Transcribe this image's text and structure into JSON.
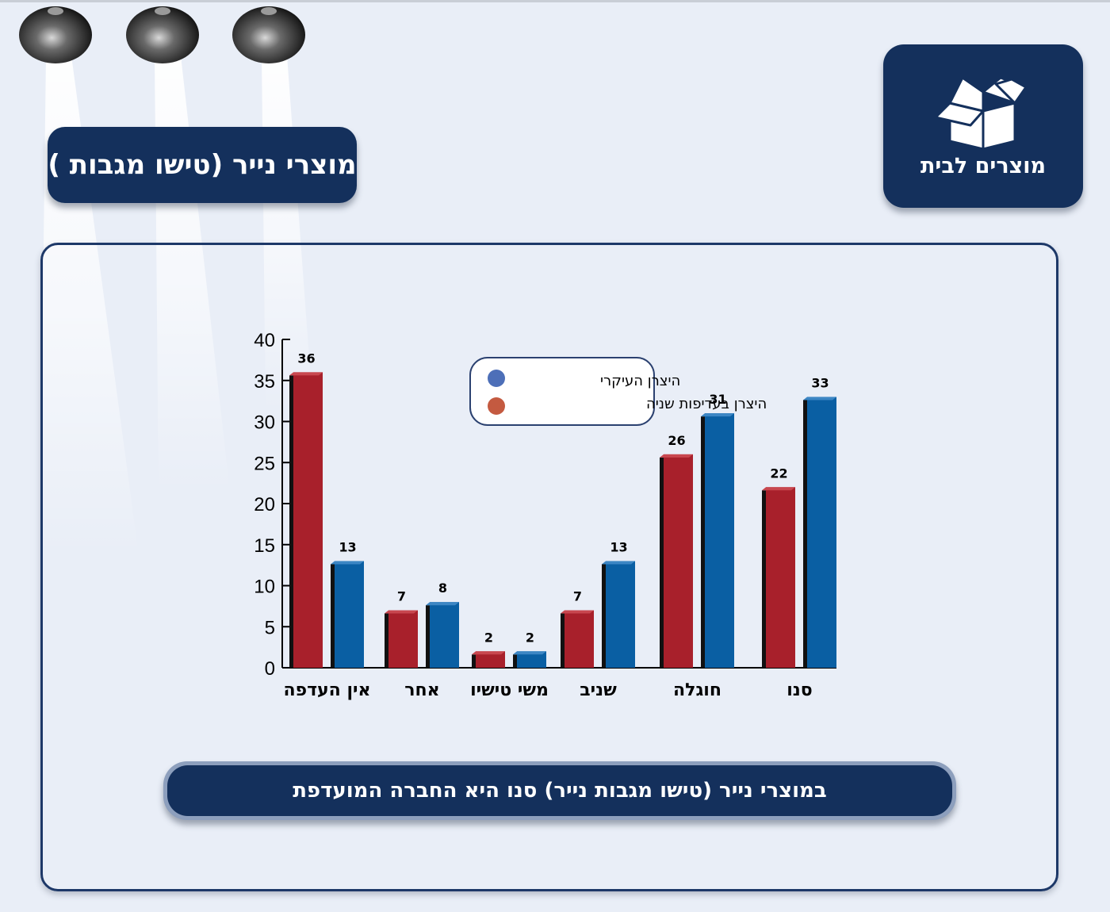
{
  "header": {
    "title": "מוצרי נייר (טישו מגבות )",
    "category_label": "מוצרים לבית",
    "category_icon": "open-box-icon"
  },
  "conclusion": "במוצרי נייר (טישו מגבות נייר) סנו היא החברה המועדפת",
  "colors": {
    "navy": "#14305c",
    "red": "#a8202b",
    "blue": "#0a5fa3",
    "legend_blue": "#4d6fb8",
    "legend_red": "#c45a40"
  },
  "chart_data": {
    "type": "bar",
    "categories": [
      "אין העדפה",
      "אחר",
      "משי טישיו",
      "שניב",
      "חוגלה",
      "סנו"
    ],
    "series": [
      {
        "name": "היצרן בעדיפות שניה",
        "color": "#a8202b",
        "values": [
          36,
          7,
          2,
          7,
          26,
          22
        ]
      },
      {
        "name": "היצרן העיקרי",
        "color": "#0a5fa3",
        "values": [
          13,
          8,
          2,
          13,
          31,
          33
        ]
      }
    ],
    "y_ticks": [
      "0",
      "5",
      "10",
      "15",
      "20",
      "25",
      "30",
      "35",
      "40"
    ],
    "ylim": [
      0,
      40
    ],
    "legend": [
      {
        "label": "היצרן העיקרי",
        "color": "#4d6fb8"
      },
      {
        "label": "היצרן בעדיפות שניה",
        "color": "#c45a40"
      }
    ],
    "legend_position": "top-center",
    "grid": false
  }
}
